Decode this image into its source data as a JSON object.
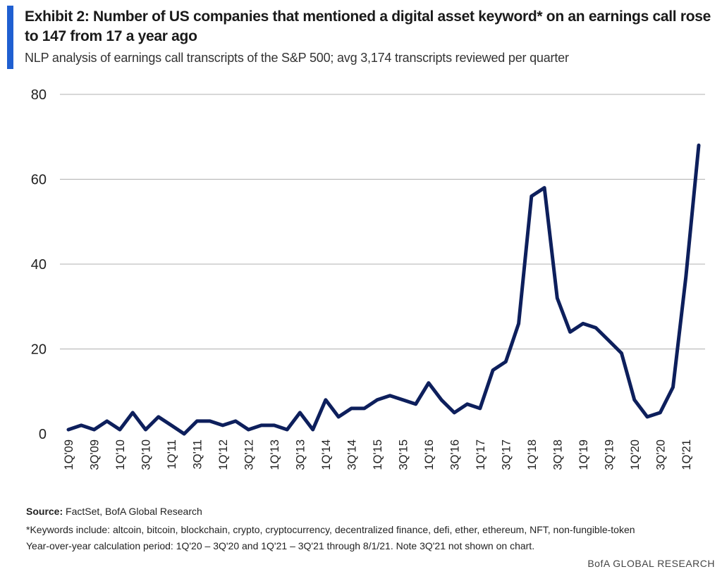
{
  "header": {
    "title": "Exhibit 2: Number of US companies that mentioned a digital asset keyword* on an earnings call rose to 147 from 17 a year ago",
    "subtitle": "NLP analysis of earnings call transcripts of the S&P 500; avg 3,174 transcripts reviewed per quarter"
  },
  "colors": {
    "accent": "#1f5fd1",
    "series": "#0d1f5c",
    "grid": "#b0b0b0"
  },
  "chart_data": {
    "type": "line",
    "title": "Number of US companies that mentioned a digital asset keyword on an earnings call",
    "xlabel": "",
    "ylabel": "",
    "ylim": [
      0,
      80
    ],
    "yticks": [
      0,
      20,
      40,
      60,
      80
    ],
    "grid": true,
    "x": [
      "1Q'09",
      "2Q'09",
      "3Q'09",
      "4Q'09",
      "1Q'10",
      "2Q'10",
      "3Q'10",
      "4Q'10",
      "1Q'11",
      "2Q'11",
      "3Q'11",
      "4Q'11",
      "1Q'12",
      "2Q'12",
      "3Q'12",
      "4Q'12",
      "1Q'13",
      "2Q'13",
      "3Q'13",
      "4Q'13",
      "1Q'14",
      "2Q'14",
      "3Q'14",
      "4Q'14",
      "1Q'15",
      "2Q'15",
      "3Q'15",
      "4Q'15",
      "1Q'16",
      "2Q'16",
      "3Q'16",
      "4Q'16",
      "1Q'17",
      "2Q'17",
      "3Q'17",
      "4Q'17",
      "1Q'18",
      "2Q'18",
      "3Q'18",
      "4Q'18",
      "1Q'19",
      "2Q'19",
      "3Q'19",
      "4Q'19",
      "1Q'20",
      "2Q'20",
      "3Q'20",
      "4Q'20",
      "1Q'21",
      "2Q'21"
    ],
    "tick_labels": [
      "1Q'09",
      "3Q'09",
      "1Q'10",
      "3Q'10",
      "1Q'11",
      "3Q'11",
      "1Q'12",
      "3Q'12",
      "1Q'13",
      "3Q'13",
      "1Q'14",
      "3Q'14",
      "1Q'15",
      "3Q'15",
      "1Q'16",
      "3Q'16",
      "1Q'17",
      "3Q'17",
      "1Q'18",
      "3Q'18",
      "1Q'19",
      "3Q'19",
      "1Q'20",
      "3Q'20",
      "1Q'21"
    ],
    "series": [
      {
        "name": "Companies mentioning digital asset keyword",
        "values": [
          1,
          2,
          1,
          3,
          1,
          5,
          1,
          4,
          2,
          0,
          3,
          3,
          2,
          3,
          1,
          2,
          2,
          1,
          5,
          1,
          8,
          4,
          6,
          6,
          8,
          9,
          8,
          7,
          12,
          8,
          5,
          7,
          6,
          15,
          17,
          26,
          56,
          58,
          32,
          24,
          26,
          25,
          22,
          19,
          8,
          4,
          5,
          11,
          37,
          68
        ]
      }
    ]
  },
  "footer": {
    "source_label": "Source:",
    "source_text": "FactSet, BofA Global Research",
    "note_keywords": "*Keywords include: altcoin, bitcoin, blockchain, crypto, cryptocurrency, decentralized finance, defi, ether, ethereum, NFT, non-fungible-token",
    "note_period": "Year-over-year calculation period: 1Q'20 – 3Q'20 and 1Q'21 – 3Q'21 through 8/1/21. Note 3Q'21 not shown on chart.",
    "brand": "BofA GLOBAL RESEARCH"
  }
}
